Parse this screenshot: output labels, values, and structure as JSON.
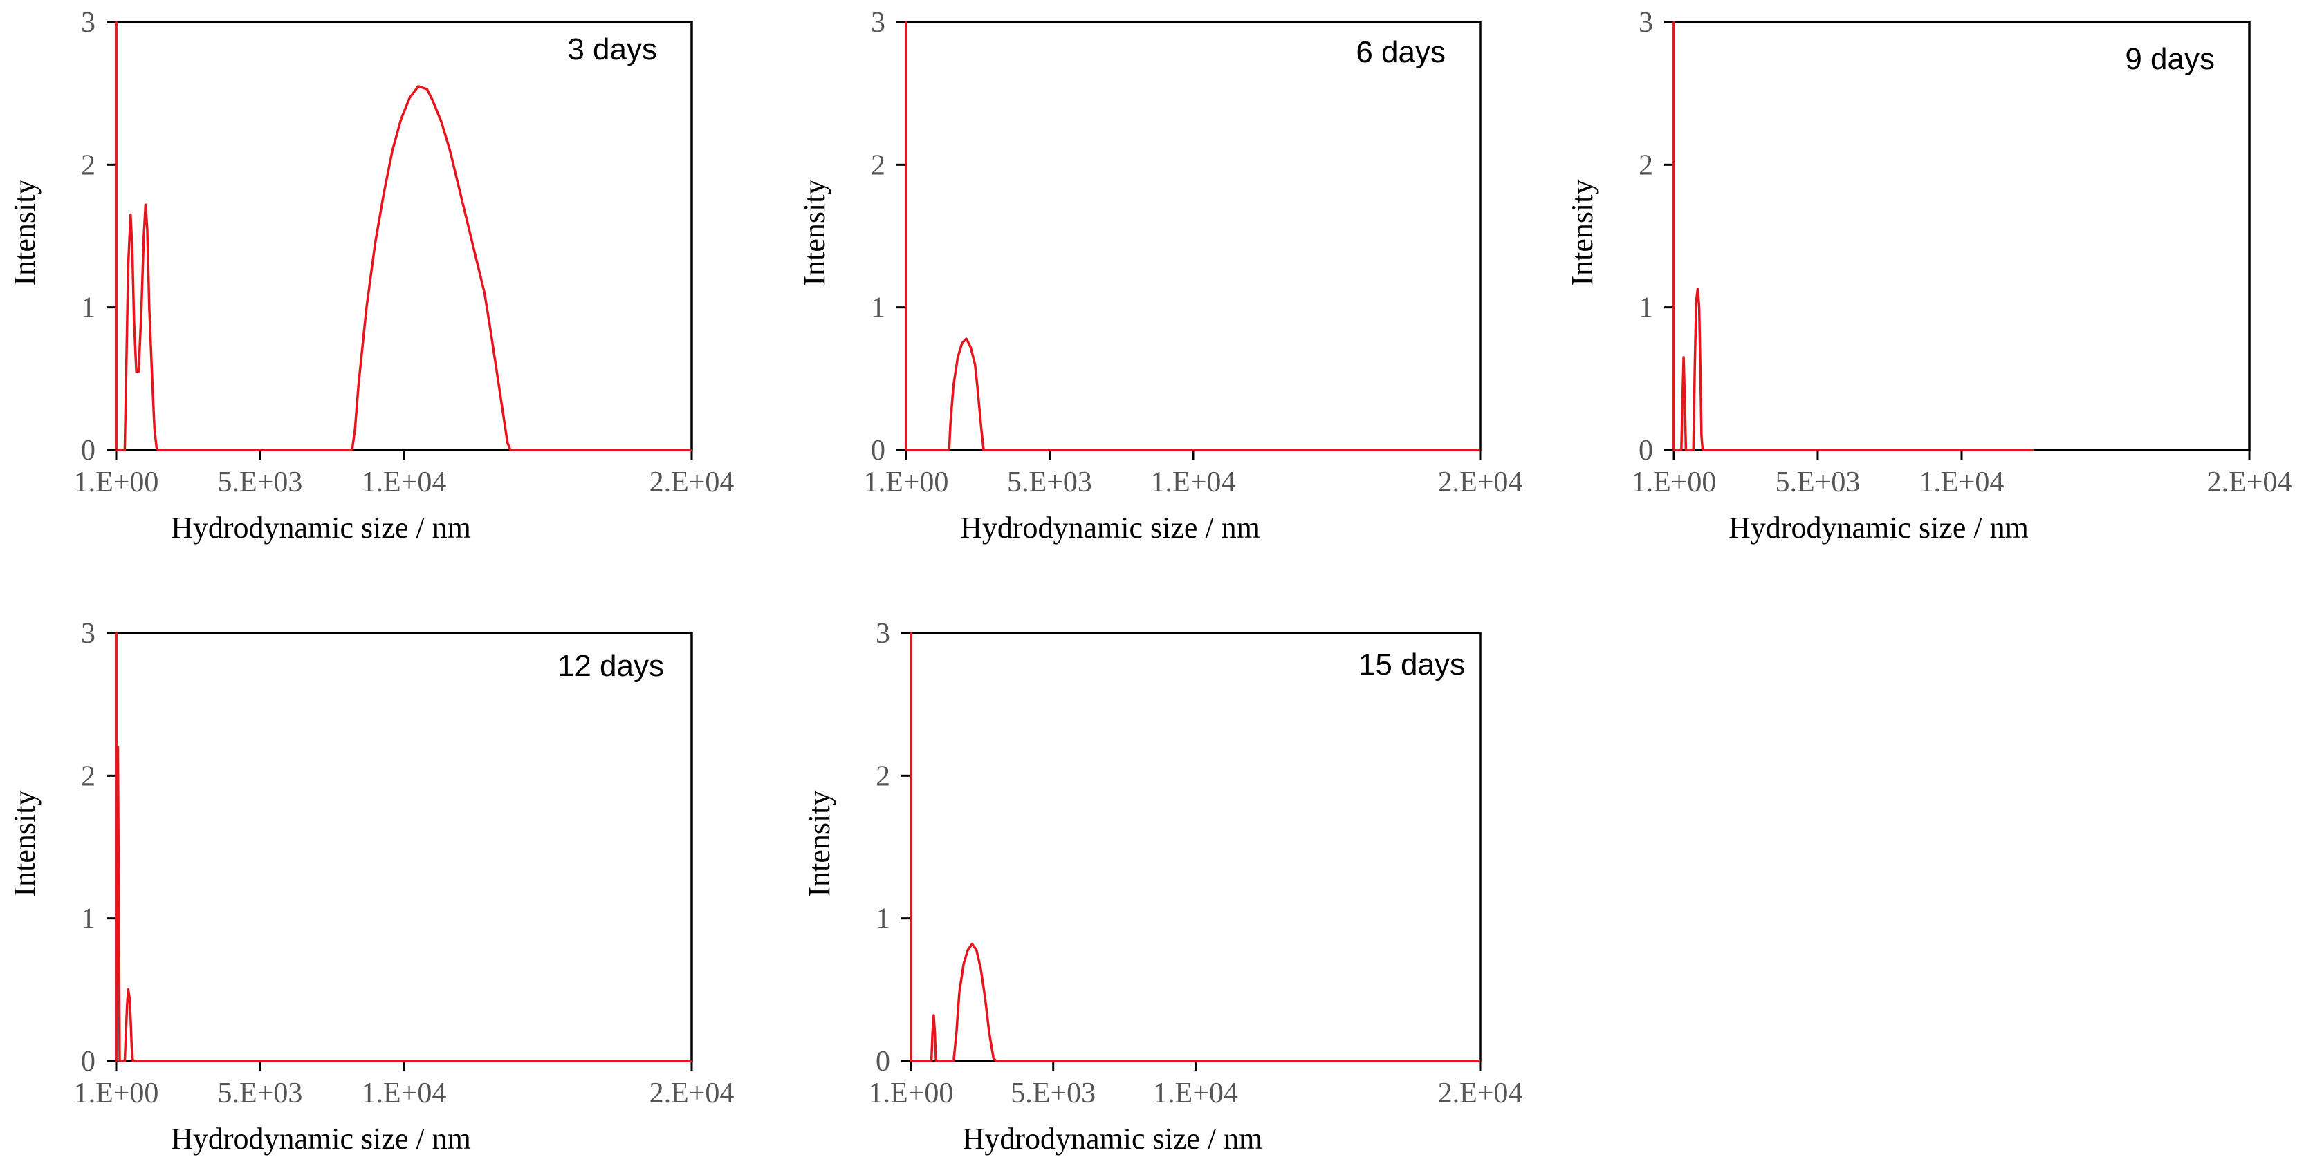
{
  "colors": {
    "series": "#e8141c",
    "axis": "#000000",
    "tick_label": "#555555"
  },
  "chart_data": [
    {
      "type": "line",
      "title": "3 days",
      "xlabel": "Hydrodynamic size / nm",
      "ylabel": "Intensity",
      "xlim": [
        1,
        20000
      ],
      "ylim": [
        0,
        3
      ],
      "x_ticks": [
        1,
        5000,
        10000,
        20000
      ],
      "x_tick_labels": [
        "1.E+00",
        "5.E+03",
        "1.E+04",
        "2.E+04"
      ],
      "y_ticks": [
        0,
        1,
        2,
        3
      ],
      "y_tick_labels": [
        "0",
        "1",
        "2",
        "3"
      ],
      "series": [
        {
          "name": "3 days",
          "x": [
            1,
            1,
            1,
            2,
            20,
            40,
            140,
            300,
            420,
            500,
            560,
            620,
            700,
            780,
            870,
            960,
            1020,
            1080,
            1150,
            1250,
            1330,
            1400,
            1450,
            1500,
            3000,
            6000,
            8200,
            8300,
            8420,
            8700,
            9000,
            9300,
            9600,
            9900,
            10200,
            10500,
            10800,
            11000,
            11300,
            11600,
            11900,
            12200,
            12500,
            12800,
            13000,
            13300,
            13600,
            13700,
            20000
          ],
          "y": [
            1.4,
            3.0,
            0.02,
            0.0,
            0.0,
            0.0,
            0.0,
            0.0,
            1.3,
            1.65,
            1.4,
            0.9,
            0.55,
            0.55,
            0.95,
            1.5,
            1.72,
            1.55,
            1.0,
            0.5,
            0.15,
            0.02,
            0.0,
            0.0,
            0.0,
            0.0,
            0.0,
            0.15,
            0.45,
            1.0,
            1.45,
            1.8,
            2.1,
            2.32,
            2.47,
            2.55,
            2.53,
            2.45,
            2.3,
            2.1,
            1.85,
            1.6,
            1.35,
            1.1,
            0.85,
            0.45,
            0.05,
            0.0,
            0.0
          ]
        }
      ]
    },
    {
      "type": "line",
      "title": "6 days",
      "xlabel": "Hydrodynamic size / nm",
      "ylabel": "Intensity",
      "xlim": [
        1,
        20000
      ],
      "ylim": [
        0,
        3
      ],
      "x_ticks": [
        1,
        5000,
        10000,
        20000
      ],
      "x_tick_labels": [
        "1.E+00",
        "5.E+03",
        "1.E+04",
        "2.E+04"
      ],
      "y_ticks": [
        0,
        1,
        2,
        3
      ],
      "y_tick_labels": [
        "0",
        "1",
        "2",
        "3"
      ],
      "series": [
        {
          "name": "6 days",
          "x": [
            1,
            1,
            1,
            2,
            200,
            1500,
            1550,
            1650,
            1800,
            1950,
            2100,
            2250,
            2400,
            2480,
            2550,
            2620,
            2700,
            5000,
            10000,
            20000
          ],
          "y": [
            0.05,
            3.0,
            0.02,
            0.0,
            0.0,
            0.0,
            0.2,
            0.45,
            0.65,
            0.75,
            0.78,
            0.72,
            0.6,
            0.45,
            0.3,
            0.15,
            0.0,
            0.0,
            0.0,
            0.0
          ]
        }
      ]
    },
    {
      "type": "line",
      "title": "9 days",
      "xlabel": "Hydrodynamic size / nm",
      "ylabel": "Intensity",
      "xlim": [
        1,
        20000
      ],
      "ylim": [
        0,
        3
      ],
      "x_ticks": [
        1,
        5000,
        10000,
        20000
      ],
      "x_tick_labels": [
        "1.E+00",
        "5.E+03",
        "1.E+04",
        "2.E+04"
      ],
      "y_ticks": [
        0,
        1,
        2,
        3
      ],
      "y_tick_labels": [
        "0",
        "1",
        "2",
        "3"
      ],
      "series": [
        {
          "name": "9 days",
          "x": [
            1,
            1,
            1,
            2,
            200,
            260,
            300,
            340,
            380,
            420,
            600,
            680,
            730,
            780,
            830,
            880,
            920,
            960,
            1000,
            5000,
            10000,
            12500
          ],
          "y": [
            0.05,
            3.0,
            0.02,
            0.0,
            0.0,
            0.0,
            0.35,
            0.65,
            0.35,
            0.0,
            0.0,
            0.0,
            0.6,
            1.05,
            1.13,
            1.0,
            0.6,
            0.1,
            0.0,
            0.0,
            0.0,
            0.0
          ]
        }
      ]
    },
    {
      "type": "line",
      "title": "12 days",
      "xlabel": "Hydrodynamic size / nm",
      "ylabel": "Intensity",
      "xlim": [
        1,
        20000
      ],
      "ylim": [
        0,
        3
      ],
      "x_ticks": [
        1,
        5000,
        10000,
        20000
      ],
      "x_tick_labels": [
        "1.E+00",
        "5.E+03",
        "1.E+04",
        "2.E+04"
      ],
      "y_ticks": [
        0,
        1,
        2,
        3
      ],
      "y_tick_labels": [
        "0",
        "1",
        "2",
        "3"
      ],
      "series": [
        {
          "name": "12 days",
          "x": [
            1,
            1,
            1,
            2,
            60,
            120,
            300,
            340,
            380,
            420,
            460,
            500,
            540,
            580,
            600,
            2000,
            5000,
            10000,
            20000
          ],
          "y": [
            0.1,
            3.0,
            2.5,
            0.0,
            2.2,
            0.0,
            0.0,
            0.2,
            0.4,
            0.5,
            0.45,
            0.3,
            0.1,
            0.0,
            0.0,
            0.0,
            0.0,
            0.0,
            0.0
          ]
        }
      ]
    },
    {
      "type": "line",
      "title": "15 days",
      "xlabel": "Hydrodynamic size / nm",
      "ylabel": "Intensity",
      "xlim": [
        1,
        20000
      ],
      "ylim": [
        0,
        3
      ],
      "x_ticks": [
        1,
        5000,
        10000,
        20000
      ],
      "x_tick_labels": [
        "1.E+00",
        "5.E+03",
        "1.E+04",
        "2.E+04"
      ],
      "y_ticks": [
        0,
        1,
        2,
        3
      ],
      "y_tick_labels": [
        "0",
        "1",
        "2",
        "3"
      ],
      "series": [
        {
          "name": "15 days",
          "x": [
            1,
            1,
            1,
            2,
            600,
            720,
            760,
            800,
            840,
            880,
            1500,
            1600,
            1700,
            1850,
            2000,
            2150,
            2300,
            2450,
            2600,
            2750,
            2900,
            3000,
            5000,
            10000,
            20000
          ],
          "y": [
            0.05,
            3.0,
            0.02,
            0.0,
            0.0,
            0.0,
            0.2,
            0.32,
            0.2,
            0.0,
            0.0,
            0.2,
            0.48,
            0.68,
            0.78,
            0.82,
            0.78,
            0.65,
            0.45,
            0.2,
            0.02,
            0.0,
            0.0,
            0.0,
            0.0
          ]
        }
      ]
    }
  ]
}
